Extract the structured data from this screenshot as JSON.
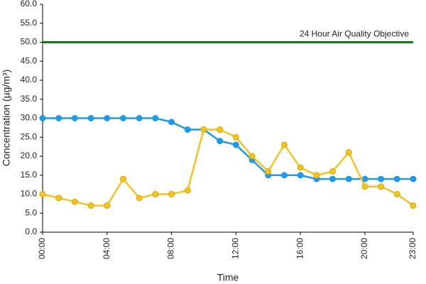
{
  "chart_data": {
    "type": "line",
    "x_label": "Time",
    "y_label": "Concentration (µg/m³)",
    "categories": [
      "00:00",
      null,
      null,
      null,
      "04:00",
      null,
      null,
      null,
      "08:00",
      null,
      null,
      null,
      "12:00",
      null,
      null,
      null,
      "16:00",
      null,
      null,
      null,
      "20:00",
      null,
      null,
      "23:00"
    ],
    "series": [
      {
        "color": "#1f9ae8",
        "values": [
          30,
          30,
          30,
          30,
          30,
          30,
          30,
          30,
          29,
          27,
          27,
          24,
          23,
          19,
          15,
          15,
          15,
          14,
          14,
          14,
          14,
          14,
          14,
          14
        ]
      },
      {
        "color": "#f2c422",
        "values": [
          10,
          9,
          8,
          7,
          7,
          14,
          9,
          10,
          10,
          11,
          27,
          27,
          25,
          20,
          16,
          23,
          17,
          15,
          16,
          21,
          12,
          12,
          10,
          7
        ]
      }
    ],
    "reference_line": {
      "value": 50,
      "label": "24 Hour Air Quality Objective",
      "color": "#137a13"
    },
    "ylim": [
      0,
      60
    ],
    "yticks": [
      {
        "value": 0,
        "label": "0.0"
      },
      {
        "value": 5,
        "label": "5.0"
      },
      {
        "value": 10,
        "label": "10.0"
      },
      {
        "value": 15,
        "label": "15.0"
      },
      {
        "value": 20,
        "label": "20.0"
      },
      {
        "value": 25,
        "label": "25.0"
      },
      {
        "value": 30,
        "label": "30.0"
      },
      {
        "value": 35,
        "label": "35.0"
      },
      {
        "value": 40,
        "label": "40.0"
      },
      {
        "value": 45,
        "label": "45.0"
      },
      {
        "value": 50,
        "label": "50.0"
      },
      {
        "value": 55,
        "label": "55.0"
      },
      {
        "value": 60,
        "label": "60.0"
      }
    ],
    "grid": false
  }
}
